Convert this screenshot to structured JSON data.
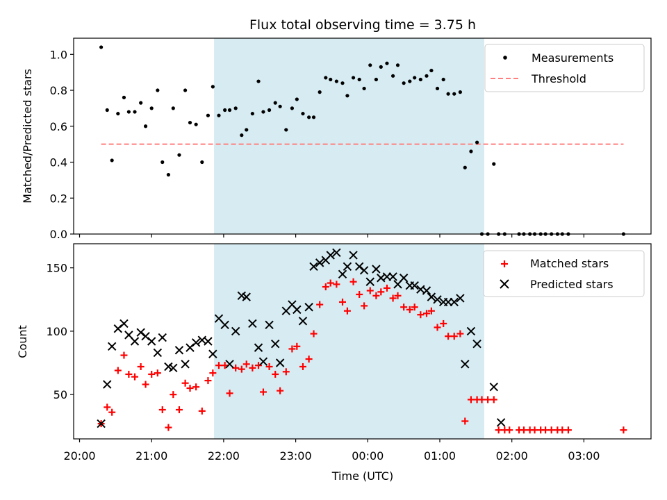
{
  "title": "Flux total observing time = 3.75 h",
  "xlabel": "Time (UTC)",
  "x_tick_labels": [
    "20:00",
    "21:00",
    "22:00",
    "23:00",
    "00:00",
    "01:00",
    "02:00",
    "03:00"
  ],
  "colors": {
    "measurements": "#000000",
    "threshold": "#ff7f7f",
    "matched": "#ff0000",
    "predicted": "#000000",
    "span": "#add8e6"
  },
  "chart_data": [
    {
      "type": "scatter",
      "ylabel": "Matched/Predicted stars",
      "ylim": [
        0,
        1.09
      ],
      "y_ticks": [
        "0.0",
        "0.2",
        "0.4",
        "0.6",
        "0.8",
        "1.0"
      ],
      "shaded_span": [
        "21:52",
        "01:37"
      ],
      "threshold": {
        "name": "Threshold",
        "value": 0.5,
        "x": [
          "20:18",
          "03:33"
        ]
      },
      "legend": {
        "position": "upper right",
        "entries": [
          "Measurements",
          "Threshold"
        ]
      },
      "series": [
        {
          "name": "Measurements",
          "points": [
            [
              "20:18",
              1.04
            ],
            [
              "20:23",
              0.69
            ],
            [
              "20:27",
              0.41
            ],
            [
              "20:32",
              0.67
            ],
            [
              "20:37",
              0.76
            ],
            [
              "20:41",
              0.68
            ],
            [
              "20:46",
              0.68
            ],
            [
              "20:51",
              0.73
            ],
            [
              "20:55",
              0.6
            ],
            [
              "21:00",
              0.7
            ],
            [
              "21:05",
              0.8
            ],
            [
              "21:09",
              0.4
            ],
            [
              "21:14",
              0.33
            ],
            [
              "21:18",
              0.7
            ],
            [
              "21:23",
              0.44
            ],
            [
              "21:28",
              0.8
            ],
            [
              "21:32",
              0.62
            ],
            [
              "21:37",
              0.61
            ],
            [
              "21:42",
              0.4
            ],
            [
              "21:47",
              0.66
            ],
            [
              "21:51",
              0.82
            ],
            [
              "21:56",
              0.66
            ],
            [
              "22:01",
              0.69
            ],
            [
              "22:05",
              0.69
            ],
            [
              "22:10",
              0.7
            ],
            [
              "22:15",
              0.55
            ],
            [
              "22:19",
              0.58
            ],
            [
              "22:24",
              0.67
            ],
            [
              "22:29",
              0.85
            ],
            [
              "22:33",
              0.68
            ],
            [
              "22:38",
              0.69
            ],
            [
              "22:43",
              0.73
            ],
            [
              "22:47",
              0.71
            ],
            [
              "22:52",
              0.58
            ],
            [
              "22:57",
              0.7
            ],
            [
              "23:01",
              0.75
            ],
            [
              "23:06",
              0.67
            ],
            [
              "23:11",
              0.65
            ],
            [
              "23:15",
              0.65
            ],
            [
              "23:20",
              0.79
            ],
            [
              "23:25",
              0.87
            ],
            [
              "23:29",
              0.86
            ],
            [
              "23:34",
              0.85
            ],
            [
              "23:39",
              0.84
            ],
            [
              "23:43",
              0.77
            ],
            [
              "23:48",
              0.87
            ],
            [
              "23:53",
              0.86
            ],
            [
              "23:57",
              0.81
            ],
            [
              "00:02",
              0.94
            ],
            [
              "00:07",
              0.86
            ],
            [
              "00:11",
              0.93
            ],
            [
              "00:16",
              0.95
            ],
            [
              "00:21",
              0.88
            ],
            [
              "00:25",
              0.94
            ],
            [
              "00:30",
              0.84
            ],
            [
              "00:35",
              0.85
            ],
            [
              "00:39",
              0.87
            ],
            [
              "00:44",
              0.86
            ],
            [
              "00:49",
              0.88
            ],
            [
              "00:53",
              0.91
            ],
            [
              "00:58",
              0.81
            ],
            [
              "01:03",
              0.86
            ],
            [
              "01:07",
              0.78
            ],
            [
              "01:12",
              0.78
            ],
            [
              "01:17",
              0.79
            ],
            [
              "01:21",
              0.37
            ],
            [
              "01:26",
              0.46
            ],
            [
              "01:31",
              0.51
            ],
            [
              "01:35",
              0.0
            ],
            [
              "01:40",
              0.0
            ],
            [
              "01:45",
              0.39
            ],
            [
              "01:49",
              0.0
            ],
            [
              "01:54",
              0.0
            ],
            [
              "02:06",
              0.0
            ],
            [
              "02:10",
              0.0
            ],
            [
              "02:15",
              0.0
            ],
            [
              "02:19",
              0.0
            ],
            [
              "02:24",
              0.0
            ],
            [
              "02:28",
              0.0
            ],
            [
              "02:33",
              0.0
            ],
            [
              "02:38",
              0.0
            ],
            [
              "02:42",
              0.0
            ],
            [
              "02:47",
              0.0
            ],
            [
              "03:33",
              0.0
            ]
          ]
        }
      ]
    },
    {
      "type": "scatter",
      "ylabel": "Count",
      "ylim": [
        15,
        169
      ],
      "y_ticks": [
        "50",
        "100",
        "150"
      ],
      "shaded_span": [
        "21:52",
        "01:37"
      ],
      "legend": {
        "position": "upper right",
        "entries": [
          "Matched stars",
          "Predicted stars"
        ]
      },
      "series": [
        {
          "name": "Matched stars",
          "marker": "+",
          "points": [
            [
              "20:18",
              27
            ],
            [
              "20:23",
              40
            ],
            [
              "20:27",
              36
            ],
            [
              "20:32",
              69
            ],
            [
              "20:37",
              81
            ],
            [
              "20:41",
              66
            ],
            [
              "20:46",
              64
            ],
            [
              "20:51",
              72
            ],
            [
              "20:55",
              58
            ],
            [
              "21:00",
              66
            ],
            [
              "21:05",
              67
            ],
            [
              "21:09",
              38
            ],
            [
              "21:14",
              24
            ],
            [
              "21:18",
              50
            ],
            [
              "21:23",
              38
            ],
            [
              "21:28",
              59
            ],
            [
              "21:32",
              55
            ],
            [
              "21:37",
              56
            ],
            [
              "21:42",
              37
            ],
            [
              "21:47",
              61
            ],
            [
              "21:51",
              67
            ],
            [
              "21:56",
              73
            ],
            [
              "22:01",
              73
            ],
            [
              "22:05",
              51
            ],
            [
              "22:10",
              71
            ],
            [
              "22:15",
              70
            ],
            [
              "22:19",
              74
            ],
            [
              "22:24",
              71
            ],
            [
              "22:29",
              73
            ],
            [
              "22:33",
              52
            ],
            [
              "22:38",
              72
            ],
            [
              "22:43",
              66
            ],
            [
              "22:47",
              53
            ],
            [
              "22:52",
              68
            ],
            [
              "22:57",
              86
            ],
            [
              "23:01",
              88
            ],
            [
              "23:06",
              72
            ],
            [
              "23:11",
              78
            ],
            [
              "23:15",
              98
            ],
            [
              "23:20",
              121
            ],
            [
              "23:25",
              135
            ],
            [
              "23:29",
              138
            ],
            [
              "23:34",
              137
            ],
            [
              "23:39",
              123
            ],
            [
              "23:43",
              116
            ],
            [
              "23:48",
              139
            ],
            [
              "23:53",
              129
            ],
            [
              "23:57",
              120
            ],
            [
              "00:02",
              132
            ],
            [
              "00:07",
              128
            ],
            [
              "00:11",
              131
            ],
            [
              "00:16",
              134
            ],
            [
              "00:21",
              126
            ],
            [
              "00:25",
              128
            ],
            [
              "00:30",
              119
            ],
            [
              "00:35",
              117
            ],
            [
              "00:39",
              119
            ],
            [
              "00:44",
              113
            ],
            [
              "00:49",
              114
            ],
            [
              "00:53",
              116
            ],
            [
              "00:58",
              103
            ],
            [
              "01:03",
              106
            ],
            [
              "01:07",
              96
            ],
            [
              "01:12",
              96
            ],
            [
              "01:17",
              98
            ],
            [
              "01:21",
              29
            ],
            [
              "01:26",
              46
            ],
            [
              "01:31",
              46
            ],
            [
              "01:35",
              46
            ],
            [
              "01:40",
              46
            ],
            [
              "01:45",
              46
            ],
            [
              "01:49",
              22
            ],
            [
              "01:54",
              22
            ],
            [
              "01:58",
              22
            ],
            [
              "02:06",
              22
            ],
            [
              "02:10",
              22
            ],
            [
              "02:15",
              22
            ],
            [
              "02:19",
              22
            ],
            [
              "02:24",
              22
            ],
            [
              "02:28",
              22
            ],
            [
              "02:33",
              22
            ],
            [
              "02:38",
              22
            ],
            [
              "02:42",
              22
            ],
            [
              "02:47",
              22
            ],
            [
              "03:33",
              22
            ]
          ]
        },
        {
          "name": "Predicted stars",
          "marker": "x",
          "points": [
            [
              "20:18",
              27
            ],
            [
              "20:23",
              58
            ],
            [
              "20:27",
              88
            ],
            [
              "20:32",
              102
            ],
            [
              "20:37",
              106
            ],
            [
              "20:41",
              97
            ],
            [
              "20:46",
              92
            ],
            [
              "20:51",
              99
            ],
            [
              "20:55",
              96
            ],
            [
              "21:00",
              92
            ],
            [
              "21:05",
              83
            ],
            [
              "21:09",
              95
            ],
            [
              "21:14",
              72
            ],
            [
              "21:18",
              71
            ],
            [
              "21:23",
              85
            ],
            [
              "21:28",
              74
            ],
            [
              "21:32",
              87
            ],
            [
              "21:37",
              91
            ],
            [
              "21:42",
              93
            ],
            [
              "21:47",
              92
            ],
            [
              "21:51",
              82
            ],
            [
              "21:56",
              110
            ],
            [
              "22:01",
              105
            ],
            [
              "22:05",
              74
            ],
            [
              "22:10",
              100
            ],
            [
              "22:15",
              128
            ],
            [
              "22:19",
              127
            ],
            [
              "22:24",
              106
            ],
            [
              "22:29",
              87
            ],
            [
              "22:33",
              76
            ],
            [
              "22:38",
              105
            ],
            [
              "22:43",
              90
            ],
            [
              "22:47",
              75
            ],
            [
              "22:52",
              116
            ],
            [
              "22:57",
              121
            ],
            [
              "23:01",
              117
            ],
            [
              "23:06",
              108
            ],
            [
              "23:11",
              119
            ],
            [
              "23:15",
              151
            ],
            [
              "23:20",
              154
            ],
            [
              "23:25",
              156
            ],
            [
              "23:29",
              160
            ],
            [
              "23:34",
              162
            ],
            [
              "23:39",
              145
            ],
            [
              "23:43",
              151
            ],
            [
              "23:48",
              160
            ],
            [
              "23:53",
              151
            ],
            [
              "23:57",
              148
            ],
            [
              "00:02",
              139
            ],
            [
              "00:07",
              149
            ],
            [
              "00:11",
              142
            ],
            [
              "00:16",
              143
            ],
            [
              "00:21",
              143
            ],
            [
              "00:25",
              137
            ],
            [
              "00:30",
              142
            ],
            [
              "00:35",
              136
            ],
            [
              "00:39",
              136
            ],
            [
              "00:44",
              133
            ],
            [
              "00:49",
              132
            ],
            [
              "00:53",
              127
            ],
            [
              "00:58",
              125
            ],
            [
              "01:03",
              123
            ],
            [
              "01:07",
              123
            ],
            [
              "01:12",
              123
            ],
            [
              "01:17",
              126
            ],
            [
              "01:21",
              74
            ],
            [
              "01:26",
              100
            ],
            [
              "01:31",
              90
            ],
            [
              "01:45",
              56
            ],
            [
              "01:51",
              28
            ]
          ]
        }
      ]
    }
  ]
}
